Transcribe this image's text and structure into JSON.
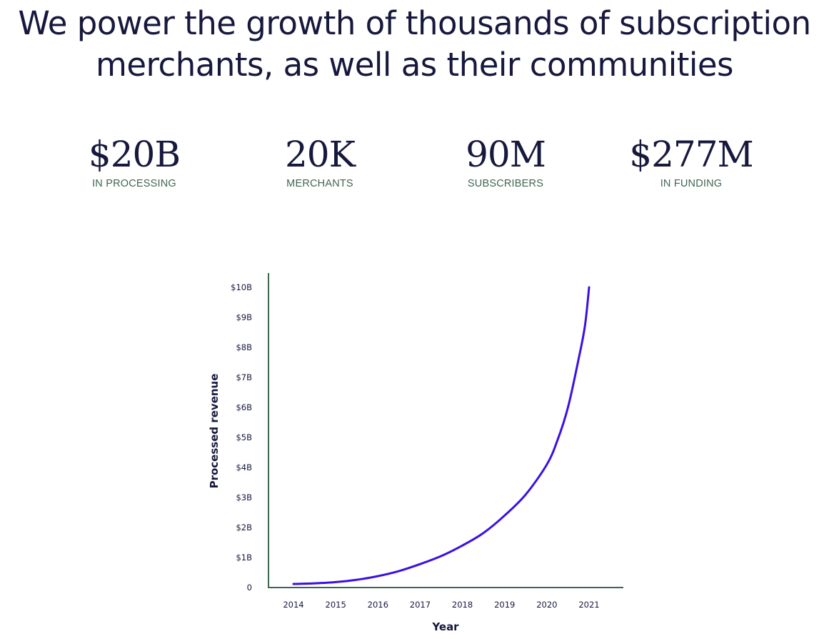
{
  "headline": {
    "line1": "We power the growth of thousands of subscription",
    "line2": "merchants, as well as their communities"
  },
  "stats": [
    {
      "value": "$20B",
      "label": "IN PROCESSING"
    },
    {
      "value": "20K",
      "label": "MERCHANTS"
    },
    {
      "value": "90M",
      "label": "SUBSCRIBERS"
    },
    {
      "value": "$277M",
      "label": "IN FUNDING"
    }
  ],
  "colors": {
    "text": "#16183d",
    "label": "#3c6650",
    "axis": "#3c6650",
    "line": "#3a10e5"
  },
  "chart_data": {
    "type": "line",
    "title": "",
    "xlabel": "Year",
    "ylabel": "Processed revenue",
    "x_ticks": [
      "2014",
      "2015",
      "2016",
      "2017",
      "2018",
      "2019",
      "2020",
      "2021"
    ],
    "y_ticks": [
      "0",
      "$1B",
      "$2B",
      "$3B",
      "$4B",
      "$5B",
      "$6B",
      "$7B",
      "$8B",
      "$9B",
      "$10B"
    ],
    "ylim": [
      0,
      10
    ],
    "y_unit": "billion USD",
    "series": [
      {
        "name": "Processed revenue",
        "x": [
          2014,
          2014.5,
          2015,
          2015.5,
          2016,
          2016.5,
          2017,
          2017.5,
          2018,
          2018.5,
          2019,
          2019.5,
          2020,
          2020.25,
          2020.5,
          2020.75,
          2020.9,
          2021
        ],
        "values": [
          0.12,
          0.14,
          0.18,
          0.26,
          0.38,
          0.55,
          0.78,
          1.05,
          1.4,
          1.82,
          2.4,
          3.1,
          4.1,
          4.9,
          6.0,
          7.6,
          8.7,
          10.0
        ]
      }
    ]
  }
}
